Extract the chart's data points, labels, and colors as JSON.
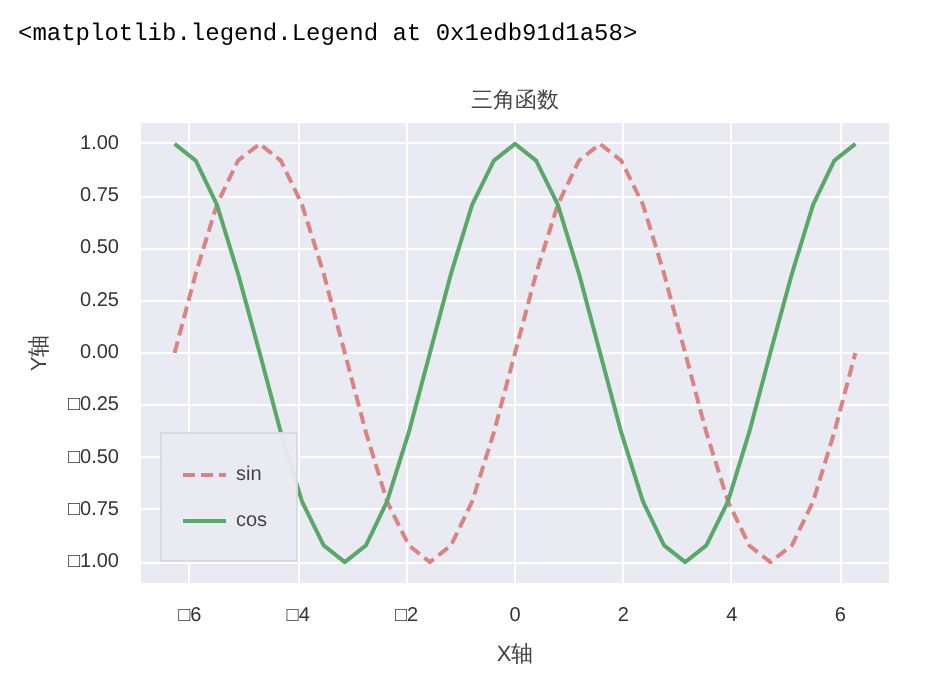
{
  "chart_data": {
    "type": "line",
    "title": "三角函数",
    "xlabel": "X轴",
    "ylabel": "Y轴",
    "annotations": [
      "<matplotlib.legend.Legend at 0x1edb91d1a58>"
    ],
    "x": [
      -6.28,
      -5.89,
      -5.5,
      -5.11,
      -4.71,
      -4.32,
      -3.93,
      -3.53,
      -3.14,
      -2.75,
      -2.36,
      -1.96,
      -1.57,
      -1.18,
      -0.79,
      -0.39,
      0,
      0.39,
      0.79,
      1.18,
      1.57,
      1.96,
      2.36,
      2.75,
      3.14,
      3.53,
      3.93,
      4.32,
      4.71,
      5.11,
      5.5,
      5.89,
      6.28
    ],
    "series": [
      {
        "name": "sin",
        "color": "#d98383",
        "line_style": "dashed",
        "values": [
          0,
          0.38,
          0.71,
          0.92,
          1,
          0.92,
          0.71,
          0.38,
          0,
          -0.38,
          -0.71,
          -0.92,
          -1,
          -0.92,
          -0.71,
          -0.38,
          0,
          0.38,
          0.71,
          0.92,
          1,
          0.92,
          0.71,
          0.38,
          0,
          -0.38,
          -0.71,
          -0.92,
          -1,
          -0.92,
          -0.71,
          -0.38,
          0
        ]
      },
      {
        "name": "cos",
        "color": "#5aa869",
        "line_style": "solid",
        "values": [
          1,
          0.92,
          0.71,
          0.38,
          0,
          -0.38,
          -0.71,
          -0.92,
          -1,
          -0.92,
          -0.71,
          -0.38,
          0,
          0.38,
          0.71,
          0.92,
          1,
          0.92,
          0.71,
          0.38,
          0,
          -0.38,
          -0.71,
          -0.92,
          -1,
          -0.92,
          -0.71,
          -0.38,
          0,
          0.38,
          0.71,
          0.92,
          1
        ]
      }
    ],
    "xlim": [
      -6.9,
      6.9
    ],
    "ylim": [
      -1.1,
      1.1
    ],
    "xticks": [
      {
        "value": -6,
        "label": "□6"
      },
      {
        "value": -4,
        "label": "□4"
      },
      {
        "value": -2,
        "label": "□2"
      },
      0,
      2,
      4,
      6
    ],
    "yticks": [
      {
        "value": -1,
        "label": "□1.00"
      },
      {
        "value": -0.75,
        "label": "□0.75"
      },
      {
        "value": -0.5,
        "label": "□0.50"
      },
      {
        "value": -0.25,
        "label": "□0.25"
      },
      {
        "value": 0,
        "label": "0.00"
      },
      {
        "value": 0.25,
        "label": "0.25"
      },
      {
        "value": 0.5,
        "label": "0.50"
      },
      {
        "value": 0.75,
        "label": "0.75"
      },
      {
        "value": 1,
        "label": "1.00"
      }
    ],
    "grid": true,
    "legend": "bottom left"
  }
}
